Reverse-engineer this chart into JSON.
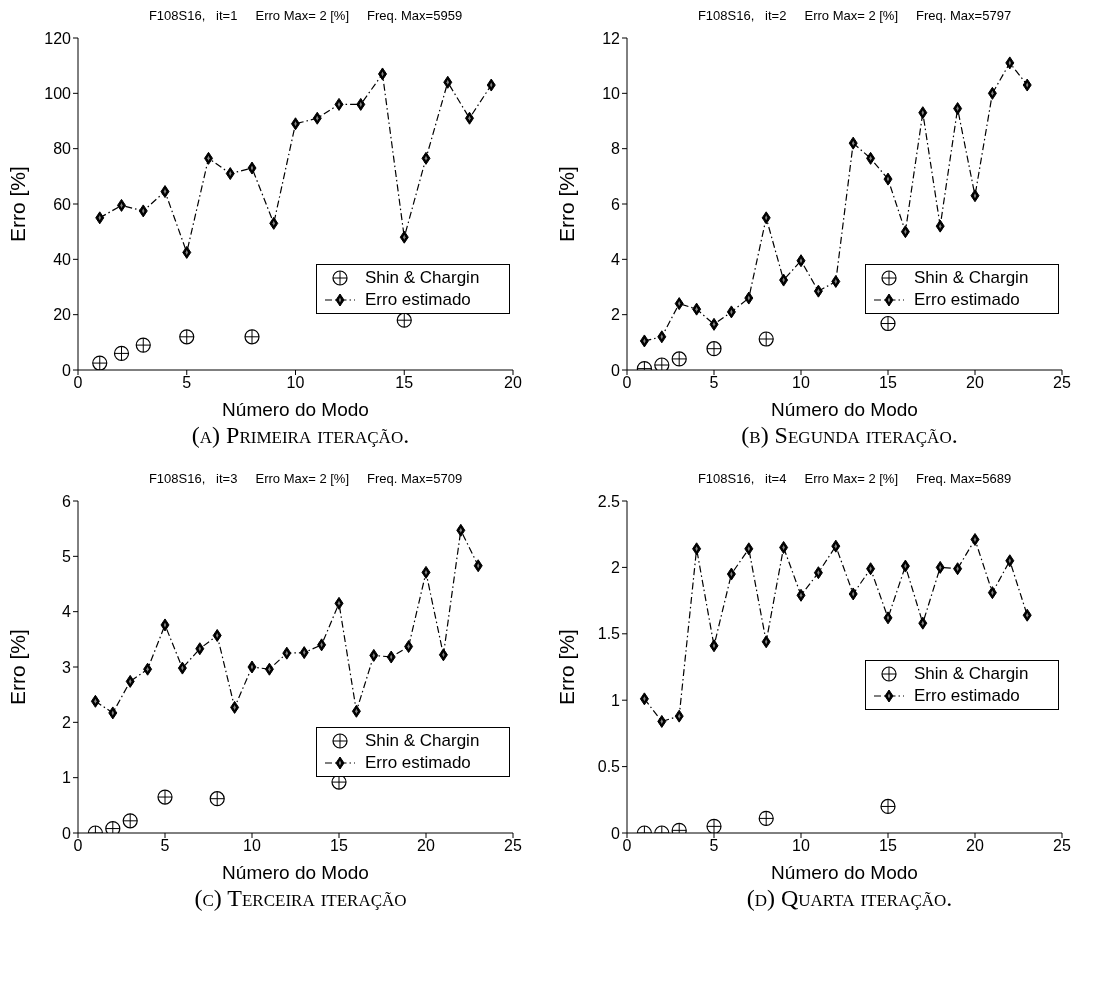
{
  "chart_data": [
    {
      "type": "line",
      "title": "F108S16,   it=1     Erro Max= 2 [%]     Freq. Max=5959",
      "xlabel": "Número do Modo",
      "ylabel": "Erro [%]",
      "annotations": [
        "(a) Primeira iteração."
      ],
      "x": [
        1,
        2,
        3,
        4,
        5,
        6,
        7,
        8,
        9,
        10,
        11,
        12,
        13,
        14,
        15,
        16,
        17,
        18,
        19
      ],
      "xlim": [
        0,
        20
      ],
      "xticks": [
        0,
        5,
        10,
        15,
        20
      ],
      "ylim": [
        0,
        120
      ],
      "yticks": [
        0,
        20,
        40,
        60,
        80,
        100,
        120
      ],
      "legend": "bottom right",
      "series": [
        {
          "name": "Shin & Chargin",
          "type": "scatter",
          "color": "#000000",
          "marker": "circle",
          "x": [
            1,
            2,
            3,
            5,
            8,
            15
          ],
          "values": [
            2.5,
            6,
            9,
            12,
            12,
            18
          ]
        },
        {
          "name": "Erro estimado",
          "color": "#000000",
          "marker": "diamond",
          "line_style": "dashed",
          "values": [
            55,
            59.5,
            57.5,
            64.5,
            42.5,
            76.5,
            71,
            73,
            53,
            89,
            91,
            96,
            96,
            107,
            48,
            76.5,
            104,
            91,
            103
          ]
        }
      ]
    },
    {
      "type": "line",
      "title": "F108S16,   it=2     Erro Max= 2 [%]     Freq. Max=5797",
      "xlabel": "Número do Modo",
      "ylabel": "Erro [%]",
      "annotations": [
        "(b) Segunda iteração."
      ],
      "x": [
        1,
        2,
        3,
        4,
        5,
        6,
        7,
        8,
        9,
        10,
        11,
        12,
        13,
        14,
        15,
        16,
        17,
        18,
        19,
        20,
        21,
        22,
        23
      ],
      "xlim": [
        0,
        25
      ],
      "xticks": [
        0,
        5,
        10,
        15,
        20,
        25
      ],
      "ylim": [
        0,
        12
      ],
      "yticks": [
        0,
        2,
        4,
        6,
        8,
        10,
        12
      ],
      "legend": "bottom right",
      "series": [
        {
          "name": "Shin & Chargin",
          "type": "scatter",
          "color": "#000000",
          "marker": "circle",
          "x": [
            1,
            2,
            3,
            5,
            8,
            15
          ],
          "values": [
            0.05,
            0.18,
            0.4,
            0.77,
            1.12,
            1.68
          ]
        },
        {
          "name": "Erro estimado",
          "color": "#000000",
          "marker": "diamond",
          "line_style": "dashed",
          "values": [
            1.05,
            1.2,
            2.4,
            2.2,
            1.65,
            2.1,
            2.6,
            5.5,
            3.25,
            3.95,
            2.85,
            3.2,
            8.2,
            7.65,
            6.9,
            5.0,
            9.3,
            5.2,
            9.45,
            6.3,
            10.0,
            11.1,
            10.3
          ]
        }
      ]
    },
    {
      "type": "line",
      "title": "F108S16,   it=3     Erro Max= 2 [%]     Freq. Max=5709",
      "xlabel": "Número do Modo",
      "ylabel": "Erro [%]",
      "annotations": [
        "(c) Terceira iteração"
      ],
      "x": [
        1,
        2,
        3,
        4,
        5,
        6,
        7,
        8,
        9,
        10,
        11,
        12,
        13,
        14,
        15,
        16,
        17,
        18,
        19,
        20,
        21,
        22,
        23
      ],
      "xlim": [
        0,
        25
      ],
      "xticks": [
        0,
        5,
        10,
        15,
        20,
        25
      ],
      "ylim": [
        0,
        6
      ],
      "yticks": [
        0,
        1,
        2,
        3,
        4,
        5,
        6
      ],
      "legend": "bottom right",
      "series": [
        {
          "name": "Shin & Chargin",
          "type": "scatter",
          "color": "#000000",
          "marker": "circle",
          "x": [
            1,
            2,
            3,
            5,
            8,
            15
          ],
          "values": [
            0.0,
            0.08,
            0.22,
            0.65,
            0.62,
            0.92
          ]
        },
        {
          "name": "Erro estimado",
          "color": "#000000",
          "marker": "diamond",
          "line_style": "dashed",
          "values": [
            2.38,
            2.17,
            2.74,
            2.96,
            3.76,
            2.98,
            3.33,
            3.57,
            2.27,
            3.0,
            2.96,
            3.25,
            3.26,
            3.4,
            4.15,
            2.2,
            3.21,
            3.18,
            3.37,
            4.71,
            3.22,
            5.47,
            4.83
          ]
        }
      ]
    },
    {
      "type": "line",
      "title": "F108S16,   it=4     Erro Max= 2 [%]     Freq. Max=5689",
      "xlabel": "Número do Modo",
      "ylabel": "Erro [%]",
      "annotations": [
        "(d) Quarta iteração."
      ],
      "x": [
        1,
        2,
        3,
        4,
        5,
        6,
        7,
        8,
        9,
        10,
        11,
        12,
        13,
        14,
        15,
        16,
        17,
        18,
        19,
        20,
        21,
        22,
        23
      ],
      "xlim": [
        0,
        25
      ],
      "xticks": [
        0,
        5,
        10,
        15,
        20,
        25
      ],
      "ylim": [
        0,
        2.5
      ],
      "yticks": [
        0,
        0.5,
        1,
        1.5,
        2,
        2.5
      ],
      "legend": "right",
      "series": [
        {
          "name": "Shin & Chargin",
          "type": "scatter",
          "color": "#000000",
          "marker": "circle",
          "x": [
            1,
            2,
            3,
            5,
            8,
            15
          ],
          "values": [
            0,
            0,
            0.02,
            0.05,
            0.11,
            0.2
          ]
        },
        {
          "name": "Erro estimado",
          "color": "#000000",
          "marker": "diamond",
          "line_style": "dashed",
          "values": [
            1.01,
            0.84,
            0.88,
            2.14,
            1.41,
            1.95,
            2.14,
            1.44,
            2.15,
            1.79,
            1.96,
            2.16,
            1.8,
            1.99,
            1.62,
            2.01,
            1.58,
            2.0,
            1.99,
            2.21,
            1.81,
            2.05,
            1.64
          ]
        }
      ]
    }
  ]
}
